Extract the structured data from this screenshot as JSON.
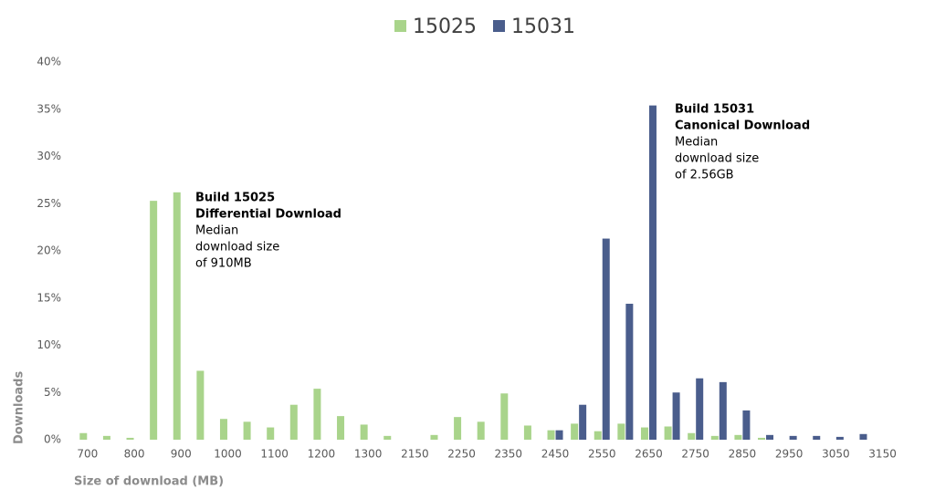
{
  "chart_data": {
    "type": "bar",
    "categories": [
      "700",
      null,
      "800",
      null,
      "900",
      null,
      "1000",
      null,
      "1100",
      null,
      "1200",
      null,
      "1300",
      null,
      "2150",
      null,
      "2250",
      null,
      "2350",
      null,
      "2450",
      null,
      "2550",
      null,
      "2650",
      null,
      "2750",
      null,
      "2850",
      null,
      "2950",
      null,
      "3050",
      null,
      "3150",
      null
    ],
    "series": [
      {
        "name": "15025",
        "color": "#a9d48b",
        "values": [
          0.7,
          0.4,
          0.2,
          25.3,
          26.2,
          7.3,
          2.2,
          1.9,
          1.3,
          3.7,
          5.4,
          2.5,
          1.6,
          0.4,
          0,
          0.5,
          2.4,
          1.9,
          4.9,
          1.5,
          1.0,
          1.7,
          0.9,
          1.7,
          1.3,
          1.4,
          0.7,
          0.4,
          0.5,
          0.2,
          0,
          0,
          0,
          0,
          0,
          0
        ]
      },
      {
        "name": "15031",
        "color": "#4a5d8c",
        "values": [
          0,
          0,
          0,
          0,
          0,
          0,
          0,
          0,
          0,
          0,
          0,
          0,
          0,
          0,
          0,
          0,
          0,
          0,
          0,
          0,
          1.0,
          3.7,
          21.3,
          14.4,
          35.4,
          5.0,
          6.5,
          6.1,
          3.1,
          0.5,
          0.4,
          0.4,
          0.3,
          0.6,
          0,
          0
        ]
      }
    ],
    "ylim": [
      0,
      40
    ],
    "yticks": [
      {
        "value": 0,
        "label": "0%"
      },
      {
        "value": 5,
        "label": "5%"
      },
      {
        "value": 10,
        "label": "10%"
      },
      {
        "value": 15,
        "label": "15%"
      },
      {
        "value": 20,
        "label": "20%"
      },
      {
        "value": 25,
        "label": "25%"
      },
      {
        "value": 30,
        "label": "30%"
      },
      {
        "value": 35,
        "label": "35%"
      },
      {
        "value": 40,
        "label": "40%"
      }
    ],
    "y_label": "Downloads",
    "x_label": "Size of download (MB)",
    "legend": "top",
    "annotations": [
      {
        "lines": [
          "Build 15025",
          "Differential Download",
          "Median",
          "download size",
          "of 910MB"
        ]
      },
      {
        "lines": [
          "Build 15031",
          "Canonical Download",
          "Median",
          "download size",
          "of 2.56GB"
        ]
      }
    ]
  }
}
